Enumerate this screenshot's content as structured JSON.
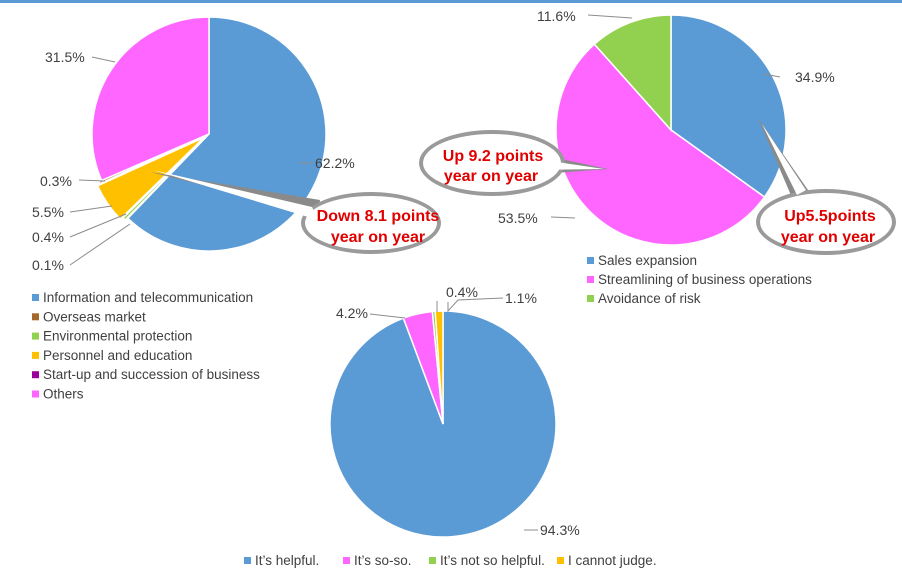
{
  "colors": {
    "top_rule": "#5b9bd5",
    "leader": "#8c8c8c",
    "callout_text": "#e00000",
    "label_text": "#404040"
  },
  "chart_data": [
    {
      "type": "pie",
      "title": "",
      "categories": [
        "Information and telecommunication",
        "Overseas market",
        "Environmental protection",
        "Personnel and education",
        "Start-up and succession of business",
        "Others"
      ],
      "values": [
        62.2,
        0.3,
        0.4,
        5.5,
        0.1,
        31.5
      ],
      "labels": [
        "62.2%",
        "0.3%",
        "0.4%",
        "5.5%",
        "0.1%",
        "31.5%"
      ],
      "colors": [
        "#5b9bd5",
        "#a5682a",
        "#92d050",
        "#ffc000",
        "#990099",
        "#ff66ff"
      ],
      "legend_position": "bottom-left",
      "callout": [
        "Down 8.1 points",
        "year on year"
      ]
    },
    {
      "type": "pie",
      "title": "",
      "categories": [
        "Sales expansion",
        "Streamlining of business operations",
        "Avoidance of risk"
      ],
      "values": [
        34.9,
        53.5,
        11.6
      ],
      "labels": [
        "34.9%",
        "53.5%",
        "11.6%"
      ],
      "colors": [
        "#5b9bd5",
        "#ff66ff",
        "#92d050"
      ],
      "legend_position": "bottom-right",
      "callouts": [
        [
          "Up 9.2 points",
          "year on year"
        ],
        [
          "Up5.5points",
          "year on year"
        ]
      ]
    },
    {
      "type": "pie",
      "title": "",
      "categories": [
        "It’s helpful.",
        "It’s so-so.",
        "It’s not so helpful.",
        "I cannot judge."
      ],
      "values": [
        94.3,
        4.2,
        0.4,
        1.1
      ],
      "labels": [
        "94.3%",
        "4.2%",
        "0.4%",
        "1.1%"
      ],
      "colors": [
        "#5b9bd5",
        "#ff66ff",
        "#92d050",
        "#ffc000"
      ],
      "legend_position": "bottom"
    }
  ]
}
